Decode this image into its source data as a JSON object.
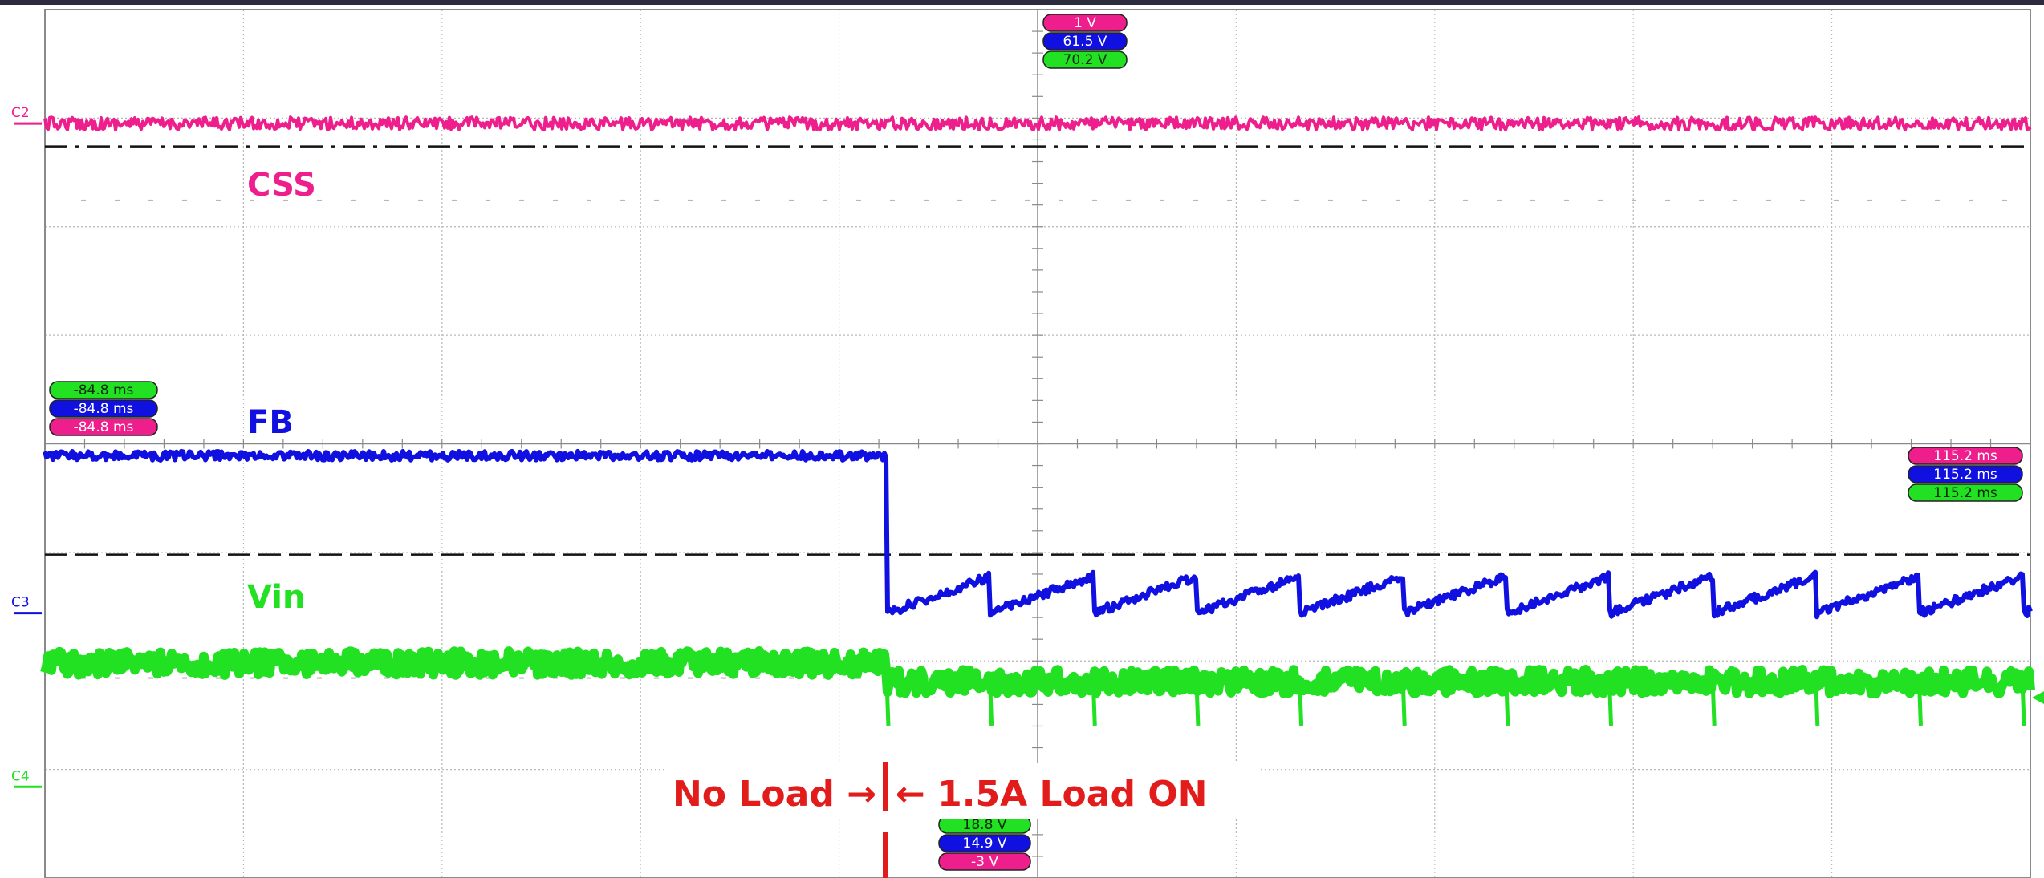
{
  "chart_data": {
    "type": "line",
    "title": "",
    "xlabel": "",
    "ylabel": "",
    "grid": true,
    "x_divisions": 10,
    "y_divisions": 8,
    "colors": {
      "CSS": "#ee1e8c",
      "FB": "#1010e0",
      "Vin": "#22e022",
      "annotation": "#e21b1b",
      "grid": "#b8b8b8",
      "frame": "#8a8a8a",
      "top_bar": "#2c2c3e"
    },
    "series": [
      {
        "name": "CSS",
        "channel": "C2",
        "shape": "flat",
        "level_div": 6.95
      },
      {
        "name": "FB",
        "channel": "C3",
        "shape": "step-sawtooth",
        "level_before_div": 3.89,
        "level_after_div": 2.44,
        "sawtooth_peak_div": 2.78,
        "sawtooth_period_div": 0.52,
        "step_at_div": 4.24
      },
      {
        "name": "Vin",
        "channel": "C4",
        "shape": "step-noisy",
        "level_before_div": 1.98,
        "level_after_div": 1.81,
        "step_at_div": 4.24,
        "spike_period_div": 0.52
      }
    ],
    "channel_markers": [
      "C2",
      "C3",
      "C4"
    ],
    "tags": {
      "top": [
        "1 V",
        "61.5 V",
        "70.2 V"
      ],
      "left": [
        "-84.8 ms",
        "-84.8 ms",
        "-84.8 ms"
      ],
      "right": [
        "115.2 ms",
        "115.2 ms",
        "115.2 ms"
      ],
      "bottom": [
        "18.8 V",
        "14.9 V",
        "-3 V"
      ]
    },
    "annotation": {
      "left_text": "No Load →",
      "right_text": "← 1.5A Load ON",
      "at_div": 4.24
    }
  }
}
